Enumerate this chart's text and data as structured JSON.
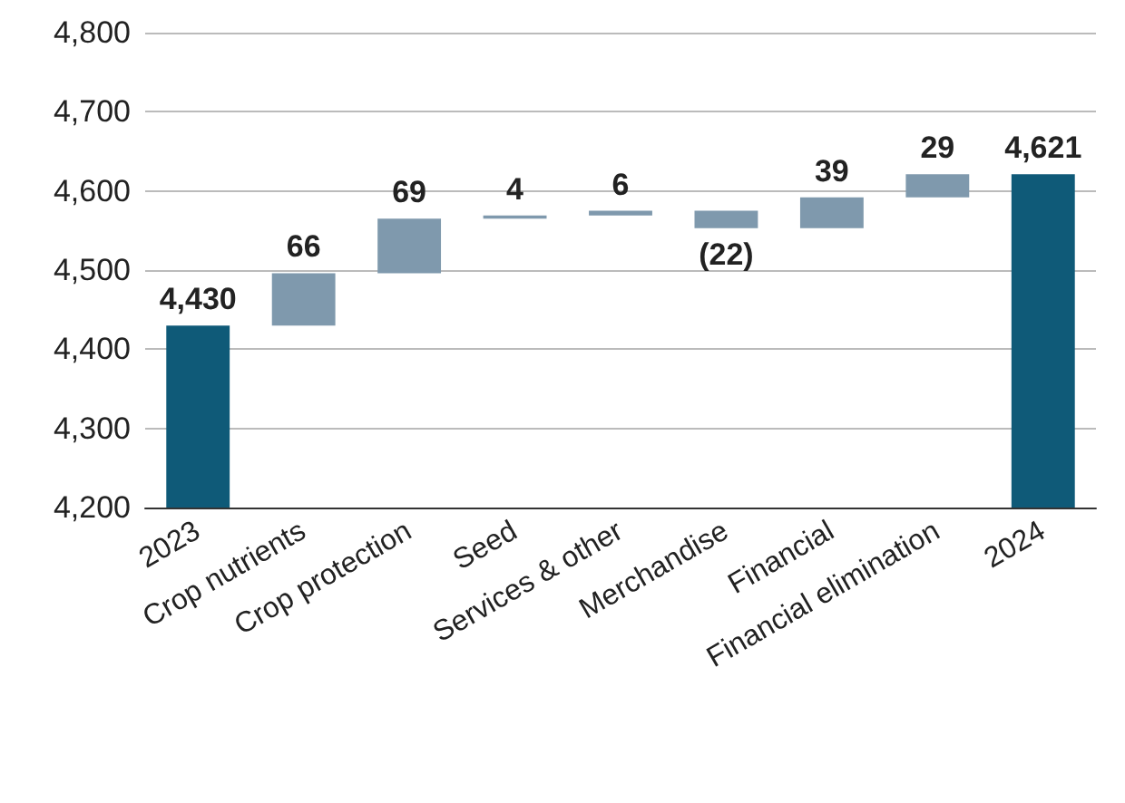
{
  "chart_data": {
    "type": "bar",
    "categories": [
      "2023",
      "Crop nutrients",
      "Crop protection",
      "Seed",
      "Services & other",
      "Merchandise",
      "Financial",
      "Financial elimination",
      "2024"
    ],
    "values": [
      4430,
      66,
      69,
      4,
      6,
      -22,
      39,
      29,
      4621
    ],
    "base": [
      null,
      4430,
      4496,
      4565,
      4569,
      4575,
      4553,
      4592,
      null
    ],
    "colors": [
      "#0f5a78",
      "#7f99ad",
      "#7f99ad",
      "#7f99ad",
      "#7f99ad",
      "#7f99ad",
      "#7f99ad",
      "#7f99ad",
      "#0f5a78"
    ],
    "value_labels": [
      "4,430",
      "66",
      "69",
      "4",
      "6",
      "(22)",
      "39",
      "29",
      "4,621"
    ],
    "ylim": [
      4200,
      4800
    ],
    "yticks": [
      {
        "value": 4200,
        "label": "4,200"
      },
      {
        "value": 4300,
        "label": "4,300"
      },
      {
        "value": 4400,
        "label": "4,400"
      },
      {
        "value": 4500,
        "label": "4,500"
      },
      {
        "value": 4600,
        "label": "4,600"
      },
      {
        "value": 4700,
        "label": "4,700"
      },
      {
        "value": 4800,
        "label": "4,800"
      }
    ],
    "grid": "y"
  }
}
